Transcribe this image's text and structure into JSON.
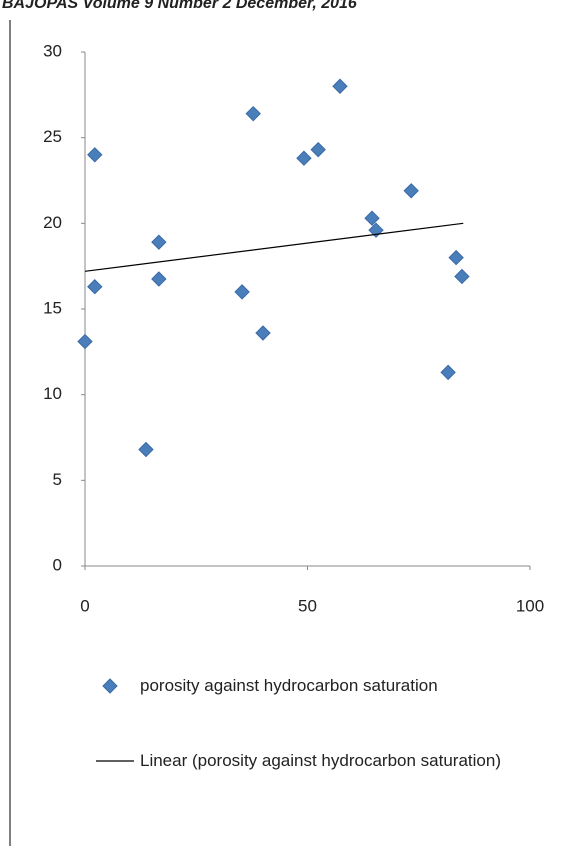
{
  "header": "BAJOPAS Volume 9 Number 2 December, 2016",
  "chart_data": {
    "type": "scatter",
    "series": [
      {
        "name": "porosity against hydrocarbon saturation",
        "color": "#4a7ebb",
        "type": "scatter",
        "x": [
          0,
          2.2,
          2.2,
          13.7,
          16.6,
          16.6,
          35.3,
          37.8,
          40.0,
          49.2,
          52.4,
          57.3,
          64.5,
          65.4,
          73.3,
          81.6,
          83.4,
          84.7
        ],
        "values": [
          13.1,
          16.3,
          24.0,
          6.8,
          18.9,
          16.75,
          16.0,
          26.4,
          13.6,
          23.8,
          24.3,
          28.0,
          20.3,
          19.6,
          21.9,
          11.3,
          18.0,
          16.9
        ]
      },
      {
        "name": "Linear (porosity against hydrocarbon saturation)",
        "color": "#000000",
        "type": "line",
        "x": [
          0,
          85
        ],
        "values": [
          17.2,
          20.0
        ]
      }
    ],
    "xlim": [
      0,
      100
    ],
    "xticks": [
      0,
      50,
      100
    ],
    "ylim": [
      0,
      30
    ],
    "yticks": [
      0,
      5,
      10,
      15,
      20,
      25,
      30
    ],
    "grid": false
  }
}
